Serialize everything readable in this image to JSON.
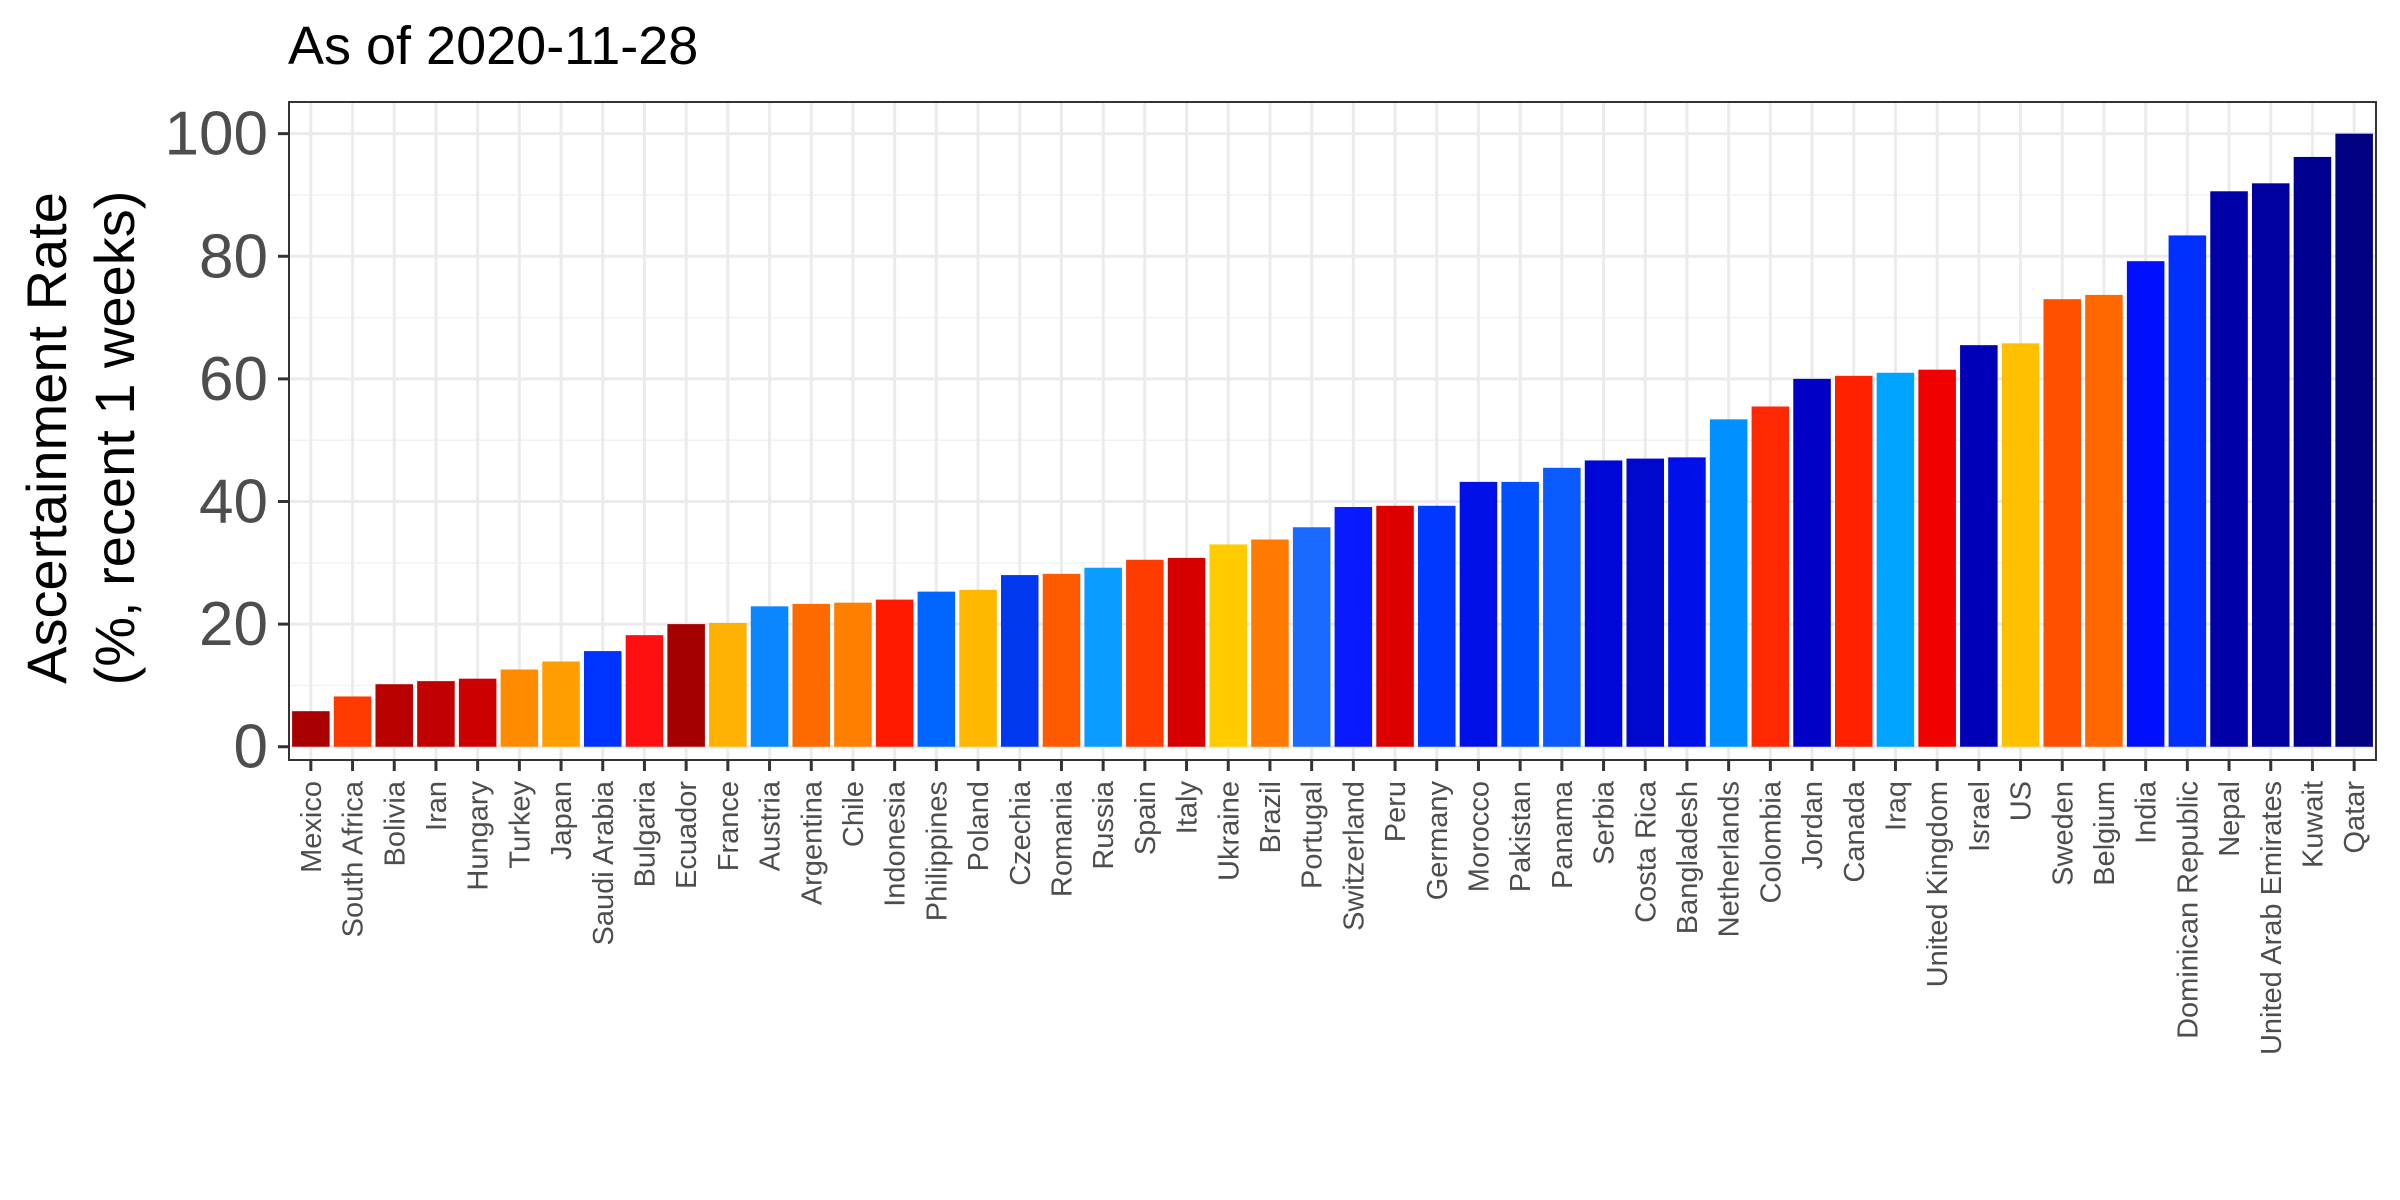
{
  "chart_data": {
    "type": "bar",
    "title": "As of 2020-11-28",
    "ylabel_line1": "Ascertainment Rate",
    "ylabel_line2": "(%, recent 1 weeks)",
    "xlabel": "",
    "ylim": [
      -2,
      105
    ],
    "yticks": [
      0,
      20,
      40,
      60,
      80,
      100
    ],
    "grid": true,
    "legend": "none",
    "categories": [
      "Mexico",
      "South Africa",
      "Bolivia",
      "Iran",
      "Hungary",
      "Turkey",
      "Japan",
      "Saudi Arabia",
      "Bulgaria",
      "Ecuador",
      "France",
      "Austria",
      "Argentina",
      "Chile",
      "Indonesia",
      "Philippines",
      "Poland",
      "Czechia",
      "Romania",
      "Russia",
      "Spain",
      "Italy",
      "Ukraine",
      "Brazil",
      "Portugal",
      "Switzerland",
      "Peru",
      "Germany",
      "Morocco",
      "Pakistan",
      "Panama",
      "Serbia",
      "Costa Rica",
      "Bangladesh",
      "Netherlands",
      "Colombia",
      "Jordan",
      "Canada",
      "Iraq",
      "United Kingdom",
      "Israel",
      "US",
      "Sweden",
      "Belgium",
      "India",
      "Dominican Republic",
      "Nepal",
      "United Arab Emirates",
      "Kuwait",
      "Qatar"
    ],
    "values": [
      5.8,
      8.2,
      10.2,
      10.7,
      11.1,
      12.6,
      13.9,
      15.6,
      18.2,
      20.0,
      20.2,
      22.9,
      23.3,
      23.5,
      24.0,
      25.3,
      25.6,
      28.0,
      28.2,
      29.2,
      30.5,
      30.8,
      33.0,
      33.8,
      35.8,
      39.1,
      39.3,
      39.3,
      43.2,
      43.2,
      45.5,
      46.7,
      47.0,
      47.2,
      53.4,
      55.5,
      60.0,
      60.5,
      61.0,
      61.5,
      65.5,
      65.8,
      73.0,
      73.7,
      79.2,
      83.4,
      90.6,
      91.9,
      96.2,
      100.0
    ],
    "colors": [
      "#A80000",
      "#FF3A00",
      "#B80000",
      "#C00000",
      "#CC0000",
      "#FF8C00",
      "#FF9E00",
      "#0033FF",
      "#FF1010",
      "#A50000",
      "#FFB000",
      "#0A86FF",
      "#FF6A00",
      "#FF8000",
      "#FF1A00",
      "#0066FF",
      "#FFB800",
      "#0038F0",
      "#FF5A00",
      "#0A9CFF",
      "#FF3C00",
      "#D60000",
      "#FFCC00",
      "#FF7A00",
      "#1A6AFF",
      "#0A1AFF",
      "#DD0000",
      "#0038FF",
      "#0010E6",
      "#0050FF",
      "#0A5AFF",
      "#0008D8",
      "#0008D0",
      "#0010E8",
      "#0090FF",
      "#FF2800",
      "#0000C6",
      "#FF2000",
      "#00A4FF",
      "#F00000",
      "#0000B8",
      "#FFC000",
      "#FF5000",
      "#FF6800",
      "#0010FF",
      "#0030FF",
      "#0000A8",
      "#0000A0",
      "#000090",
      "#000080"
    ]
  }
}
